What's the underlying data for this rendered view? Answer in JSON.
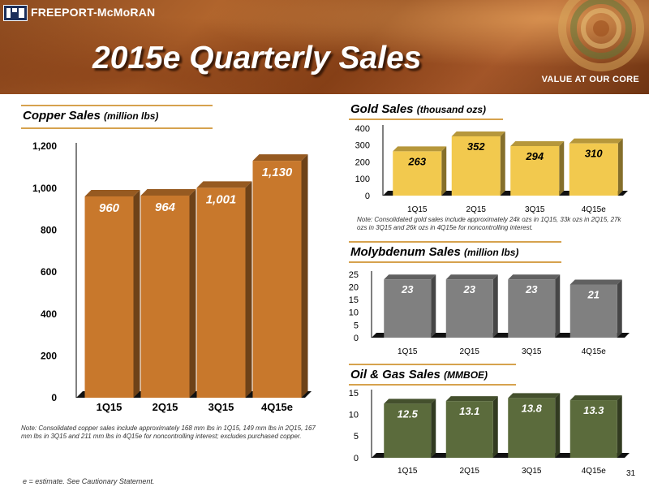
{
  "header": {
    "logo_text": "FREEPORT-McMoRAN",
    "title": "2015e Quarterly Sales",
    "tagline": "VALUE AT OUR CORE"
  },
  "page_number": "31",
  "footnote": "e = estimate. See Cautionary Statement.",
  "copper": {
    "title": "Copper Sales",
    "unit": "(million lbs)",
    "note": "Note:  Consolidated copper sales include approximately 168 mm lbs in 1Q15, 149 mm lbs in 2Q15, 167 mm lbs in 3Q15 and 211 mm lbs in 4Q15e for noncontrolling interest; excludes purchased copper."
  },
  "gold": {
    "title": "Gold Sales",
    "unit": "(thousand ozs)",
    "note": "Note: Consolidated gold sales include approximately 24k ozs in 1Q15, 33k ozs in 2Q15, 27k ozs in 3Q15 and 26k ozs in 4Q15e for noncontrolling interest."
  },
  "moly": {
    "title": "Molybdenum Sales",
    "unit": "(million lbs)"
  },
  "oilgas": {
    "title": "Oil & Gas Sales",
    "unit": "(MMBOE)"
  },
  "colors": {
    "copper": "#c8782c",
    "gold": "#f2c94e",
    "moly": "#808080",
    "oilgas": "#5b6b3c",
    "underline": "#d6a24e"
  },
  "chart_data": [
    {
      "id": "copper",
      "type": "bar",
      "categories": [
        "1Q15",
        "2Q15",
        "3Q15",
        "4Q15e"
      ],
      "values": [
        960,
        964,
        1001,
        1130
      ],
      "labels": [
        "960",
        "964",
        "1,001",
        "1,130"
      ],
      "yticks": [
        "0",
        "200",
        "400",
        "600",
        "800",
        "1,000",
        "1,200"
      ],
      "ylim": [
        0,
        1200
      ],
      "title": "Copper Sales (million lbs)",
      "xlabel": "",
      "ylabel": ""
    },
    {
      "id": "gold",
      "type": "bar",
      "categories": [
        "1Q15",
        "2Q15",
        "3Q15",
        "4Q15e"
      ],
      "values": [
        263,
        352,
        294,
        310
      ],
      "labels": [
        "263",
        "352",
        "294",
        "310"
      ],
      "yticks": [
        "0",
        "100",
        "200",
        "300",
        "400"
      ],
      "ylim": [
        0,
        400
      ],
      "title": "Gold Sales (thousand ozs)",
      "xlabel": "",
      "ylabel": ""
    },
    {
      "id": "moly",
      "type": "bar",
      "categories": [
        "1Q15",
        "2Q15",
        "3Q15",
        "4Q15e"
      ],
      "values": [
        23,
        23,
        23,
        21
      ],
      "labels": [
        "23",
        "23",
        "23",
        "21"
      ],
      "yticks": [
        "0",
        "5",
        "10",
        "15",
        "20",
        "25"
      ],
      "ylim": [
        0,
        25
      ],
      "title": "Molybdenum Sales (million lbs)",
      "xlabel": "",
      "ylabel": ""
    },
    {
      "id": "oilgas",
      "type": "bar",
      "categories": [
        "1Q15",
        "2Q15",
        "3Q15",
        "4Q15e"
      ],
      "values": [
        12.5,
        13.1,
        13.8,
        13.3
      ],
      "labels": [
        "12.5",
        "13.1",
        "13.8",
        "13.3"
      ],
      "yticks": [
        "0",
        "5",
        "10",
        "15"
      ],
      "ylim": [
        0,
        15
      ],
      "title": "Oil & Gas Sales (MMBOE)",
      "xlabel": "",
      "ylabel": ""
    }
  ]
}
